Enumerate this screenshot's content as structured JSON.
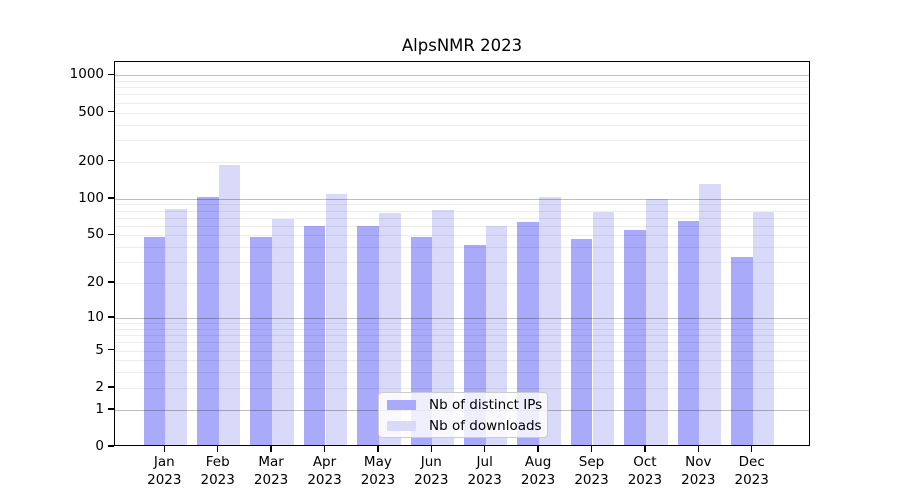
{
  "chart_data": {
    "type": "bar",
    "title": "AlpsNMR 2023",
    "months": [
      "Jan",
      "Feb",
      "Mar",
      "Apr",
      "May",
      "Jun",
      "Jul",
      "Aug",
      "Sep",
      "Oct",
      "Nov",
      "Dec"
    ],
    "year_label": "2023",
    "categories": [
      "Jan 2023",
      "Feb 2023",
      "Mar 2023",
      "Apr 2023",
      "May 2023",
      "Jun 2023",
      "Jul 2023",
      "Aug 2023",
      "Sep 2023",
      "Oct 2023",
      "Nov 2023",
      "Dec 2023"
    ],
    "series": [
      {
        "name": "Nb of distinct IPs",
        "color": "#aaaafa",
        "values": [
          47,
          100,
          47,
          58,
          58,
          47,
          40,
          62,
          45,
          53,
          63,
          32
        ]
      },
      {
        "name": "Nb of downloads",
        "color": "#d9d9fa",
        "values": [
          80,
          181,
          66,
          105,
          73,
          78,
          58,
          100,
          75,
          96,
          128,
          75
        ]
      }
    ],
    "xlabel": "",
    "ylabel": "",
    "yscale": "log1p",
    "ylim": [
      0,
      1200
    ],
    "yticks": [
      0,
      1,
      2,
      5,
      10,
      20,
      50,
      100,
      200,
      500,
      1000
    ],
    "grid": "horizontal; gray lines at decades 1/10/100/1000, faint minor lines at 2-9 per decade",
    "legend_position": "lower center inside plot"
  },
  "colors": {
    "background": "#ffffff",
    "spine": "#000000",
    "text": "#000000",
    "bar_distinct_ips": "#aaaafa",
    "bar_downloads": "#d9d9fa",
    "major_grid": "#c0c0c0",
    "minor_grid": "#ededed"
  }
}
